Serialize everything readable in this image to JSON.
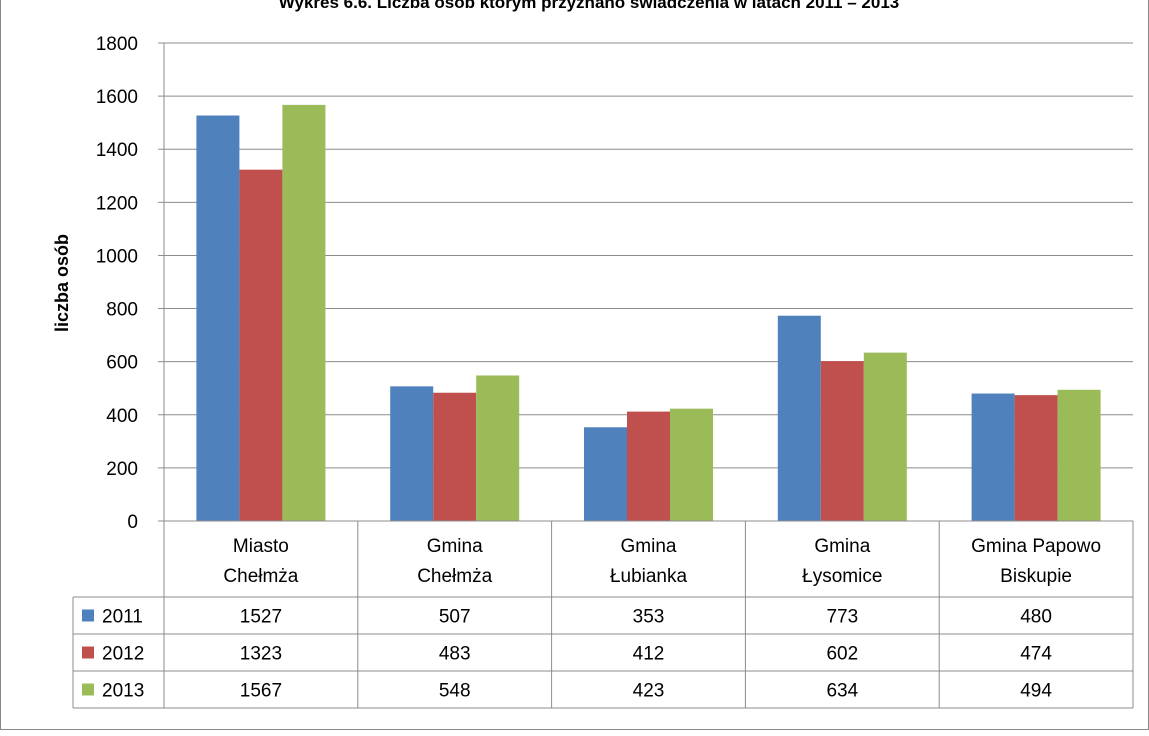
{
  "chart_data": {
    "type": "bar",
    "title": "Wykres 6.6. Liczba osób którym przyznano świadczenia w latach 2011 – 2013",
    "ylabel": "liczba osób",
    "xlabel": "",
    "ylim": [
      0,
      1800
    ],
    "yticks": [
      0,
      200,
      400,
      600,
      800,
      1000,
      1200,
      1400,
      1600,
      1800
    ],
    "grid": true,
    "legend": "data-table",
    "categories": [
      [
        "Miasto",
        "Chełmża"
      ],
      [
        "Gmina",
        "Chełmża"
      ],
      [
        "Gmina",
        "Łubianka"
      ],
      [
        "Gmina",
        "Łysomice"
      ],
      [
        "Gmina Papowo",
        "Biskupie"
      ]
    ],
    "series": [
      {
        "name": "2011",
        "color": "#4f81bd",
        "values": [
          1527,
          507,
          353,
          773,
          480
        ]
      },
      {
        "name": "2012",
        "color": "#c0504d",
        "values": [
          1323,
          483,
          412,
          602,
          474
        ]
      },
      {
        "name": "2013",
        "color": "#9bbb59",
        "values": [
          1567,
          548,
          423,
          634,
          494
        ]
      }
    ]
  }
}
